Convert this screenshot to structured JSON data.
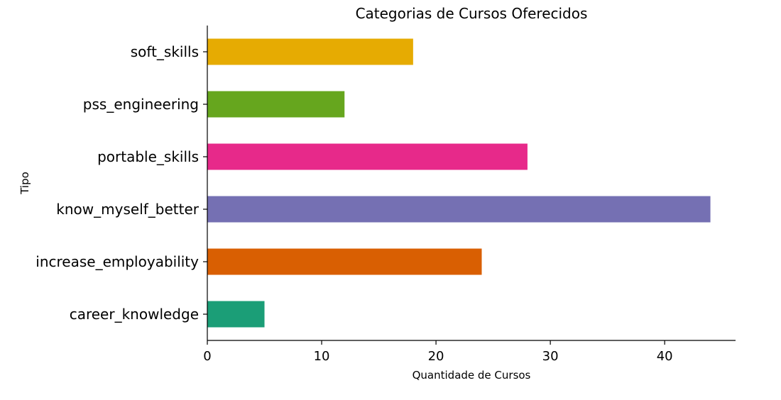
{
  "chart_data": {
    "type": "bar",
    "orientation": "horizontal",
    "title": "Categorias de Cursos Oferecidos",
    "xlabel": "Quantidade de Cursos",
    "ylabel": "Tipo",
    "categories": [
      "career_knowledge",
      "increase_employability",
      "know_myself_better",
      "portable_skills",
      "pss_engineering",
      "soft_skills"
    ],
    "values": [
      5,
      24,
      44,
      28,
      12,
      18
    ],
    "colors": [
      "#1b9e77",
      "#d95f02",
      "#7570b3",
      "#e7298a",
      "#66a61e",
      "#e6ab02"
    ],
    "xlim": [
      0,
      46.2
    ],
    "xticks": [
      0,
      10,
      20,
      30,
      40
    ],
    "grid": false,
    "legend": "none"
  }
}
